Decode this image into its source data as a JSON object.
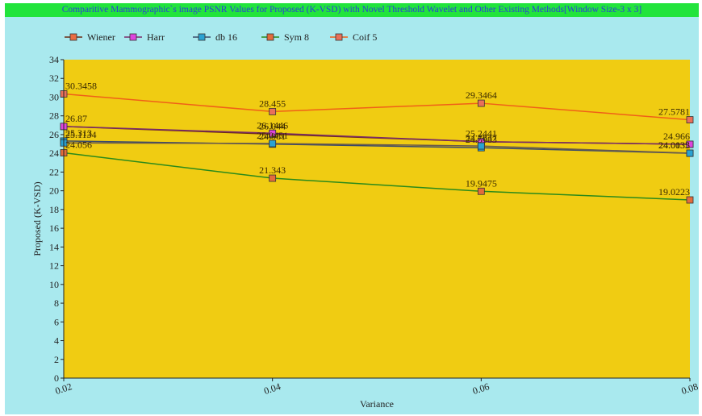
{
  "chart_data": {
    "type": "line",
    "title": "Comparitive Mammographic`s image PSNR Values for Proposed (K-VSD) with Novel Threshold Wavelet and Other Existing Methods[Window Size-3 x 3]",
    "xlabel": "Variance",
    "ylabel": "Proposed (K-VSD)",
    "x": [
      0.02,
      0.04,
      0.06,
      0.08
    ],
    "x_tick_labels": [
      "0.02",
      "0.04",
      "0.06",
      "0.08"
    ],
    "ylim": [
      0,
      34
    ],
    "y_ticks": [
      0,
      2,
      4,
      6,
      8,
      10,
      12,
      14,
      16,
      18,
      20,
      22,
      24,
      26,
      28,
      30,
      32,
      34
    ],
    "grid": false,
    "legend_position": "top-left",
    "plot_background": "#f0cc12",
    "chart_background": "#a9e9ee",
    "title_background": "#22e43c",
    "title_color": "#2b3fd6",
    "series": [
      {
        "name": "Wiener",
        "values": [
          26.87,
          26.044,
          25.2441,
          24.966
        ],
        "line_color": "#6b2a12",
        "marker_color": "#ea6d42",
        "labels": [
          "26.87",
          "26.044",
          "25.2441",
          "24.966"
        ]
      },
      {
        "name": "Harr",
        "values": [
          26.87,
          26.1446,
          25.2441,
          24.966
        ],
        "line_color": "#7a2a6a",
        "marker_color": "#dd45dd",
        "labels": [
          "",
          "26.1446",
          "",
          ""
        ]
      },
      {
        "name": "db 16",
        "values": [
          25.313,
          24.981,
          24.5983,
          24.0035
        ],
        "line_color": "#3a4a6a",
        "marker_color": "#2aa2d2",
        "labels": [
          "25.313",
          "24.981",
          "24.5983",
          "24.0035"
        ]
      },
      {
        "name": "Sym 8",
        "values": [
          24.056,
          21.343,
          19.9475,
          19.0223
        ],
        "line_color": "#2a8a1a",
        "marker_color": "#e36c3c",
        "labels": [
          "24.056",
          "21.343",
          "19.9475",
          "19.0223"
        ]
      },
      {
        "name": "Coif 5",
        "values": [
          30.3458,
          28.455,
          29.3464,
          27.5781
        ],
        "line_color": "#f06018",
        "marker_color": "#e9705a",
        "labels": [
          "30.3458",
          "28.455",
          "29.3464",
          "27.5781"
        ]
      },
      {
        "name": "",
        "values": [
          25.1134,
          25.0451,
          24.7837,
          24.0133
        ],
        "line_color": "#6a5a4a",
        "marker_color": "#2aa2d2",
        "labels": [
          "25.1134",
          "25.0451",
          "24.7837",
          "24.0133"
        ]
      }
    ]
  }
}
